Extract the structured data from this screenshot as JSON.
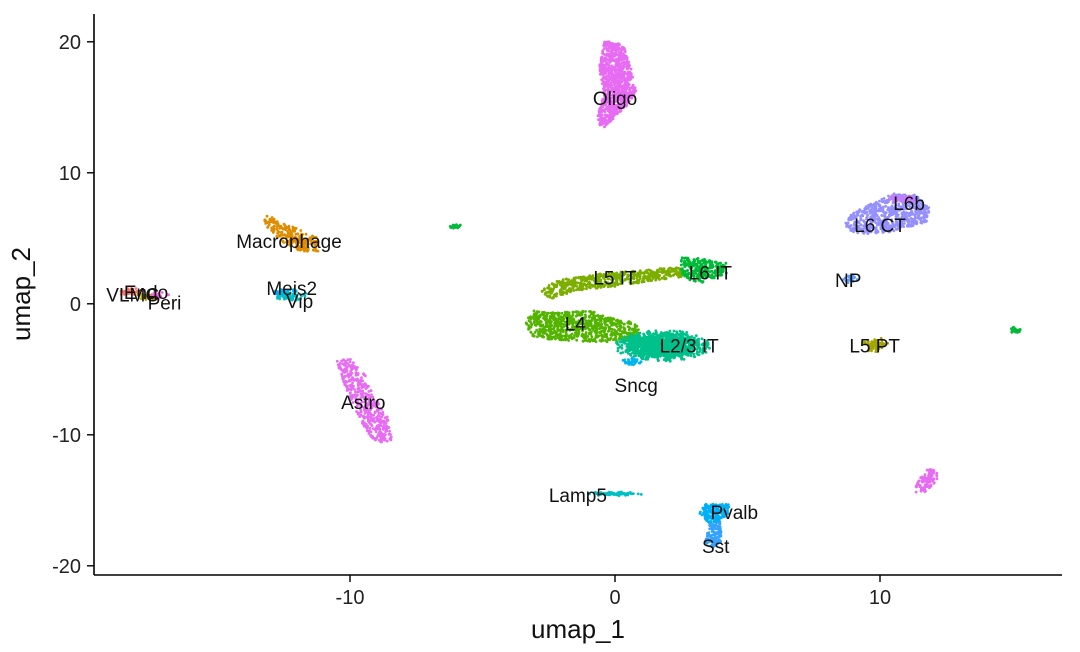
{
  "chart_data": {
    "type": "scatter",
    "title": "",
    "xlabel": "umap_1",
    "ylabel": "umap_2",
    "xlim": [
      -19.5,
      17.0
    ],
    "ylim": [
      -20.7,
      22.2
    ],
    "x_ticks": [
      -10,
      0,
      10
    ],
    "x_tick_labels": [
      "-10",
      "0",
      "10"
    ],
    "y_ticks": [
      -20,
      -10,
      0,
      10,
      20
    ],
    "y_tick_labels": [
      "-20",
      "-10",
      "0",
      "10",
      "20"
    ],
    "grid": false,
    "legend": "none",
    "point_size": 1.4,
    "clusters": [
      {
        "name": "Oligo",
        "color": "#E76BF3",
        "shape": "polygon",
        "n": 900,
        "polygon": [
          [
            -0.4,
            20.1
          ],
          [
            0.3,
            19.8
          ],
          [
            0.6,
            18.0
          ],
          [
            0.8,
            16.2
          ],
          [
            0.4,
            15.0
          ],
          [
            -0.5,
            13.3
          ],
          [
            -0.7,
            14.2
          ],
          [
            -0.4,
            16.0
          ],
          [
            -0.6,
            18.0
          ]
        ],
        "label": {
          "text": "Oligo",
          "x": 0.0,
          "y": 15.7
        }
      },
      {
        "name": "Macrophage",
        "color": "#DE8C00",
        "shape": "polygon",
        "n": 240,
        "polygon": [
          [
            -13.3,
            7.0
          ],
          [
            -12.6,
            6.2
          ],
          [
            -11.8,
            5.6
          ],
          [
            -11.2,
            5.0
          ],
          [
            -11.2,
            4.0
          ],
          [
            -12.0,
            4.0
          ],
          [
            -12.6,
            4.8
          ],
          [
            -13.2,
            6.0
          ]
        ],
        "label": {
          "text": "Macrophage",
          "x": -12.3,
          "y": 4.8
        }
      },
      {
        "name": "Endo",
        "color": "#F8766D",
        "shape": "ellipse",
        "n": 30,
        "center": [
          -18.3,
          0.9
        ],
        "radius": [
          0.5,
          0.35
        ],
        "rotate": 0,
        "label": {
          "text": "Endo",
          "x": -17.7,
          "y": 0.9
        }
      },
      {
        "name": "VLMC",
        "color": "#B79F00",
        "shape": "ellipse",
        "n": 25,
        "center": [
          -17.7,
          0.6
        ],
        "radius": [
          0.5,
          0.3
        ],
        "rotate": 0,
        "label": {
          "text": "VLMC",
          "x": -18.2,
          "y": 0.7
        }
      },
      {
        "name": "Peri",
        "color": "#F564E3",
        "shape": "ellipse",
        "n": 25,
        "center": [
          -17.2,
          0.6
        ],
        "radius": [
          0.4,
          0.3
        ],
        "rotate": 0,
        "label": {
          "text": "Peri",
          "x": -17.0,
          "y": 0.1
        }
      },
      {
        "name": "Meis2",
        "color": "#00A9FF",
        "shape": "ellipse",
        "n": 30,
        "center": [
          -12.5,
          0.9
        ],
        "radius": [
          0.5,
          0.4
        ],
        "rotate": 0,
        "label": {
          "text": "Meis2",
          "x": -12.2,
          "y": 1.2
        }
      },
      {
        "name": "Vip",
        "color": "#00BFC4",
        "shape": "ellipse",
        "n": 60,
        "center": [
          -12.2,
          0.6
        ],
        "radius": [
          0.6,
          0.45
        ],
        "rotate": 0,
        "label": {
          "text": "Vip",
          "x": -11.9,
          "y": 0.2
        }
      },
      {
        "name": "Astro",
        "color": "#E76BF3",
        "shape": "polygon",
        "n": 450,
        "polygon": [
          [
            -10.5,
            -4.2
          ],
          [
            -10.0,
            -4.2
          ],
          [
            -9.4,
            -5.5
          ],
          [
            -9.1,
            -7.0
          ],
          [
            -8.6,
            -8.5
          ],
          [
            -8.4,
            -10.5
          ],
          [
            -9.0,
            -10.6
          ],
          [
            -9.5,
            -9.5
          ],
          [
            -9.8,
            -8.0
          ],
          [
            -10.3,
            -6.0
          ]
        ],
        "label": {
          "text": "Astro",
          "x": -9.5,
          "y": -7.5
        }
      },
      {
        "name": "stray-green",
        "color": "#00BA38",
        "shape": "ellipse",
        "n": 18,
        "center": [
          -6.0,
          5.9
        ],
        "radius": [
          0.3,
          0.15
        ],
        "rotate": 0,
        "label": null
      },
      {
        "name": "L5 IT",
        "color": "#7CAE00",
        "shape": "polygon",
        "n": 550,
        "polygon": [
          [
            -2.2,
            1.8
          ],
          [
            -0.5,
            2.3
          ],
          [
            1.0,
            2.6
          ],
          [
            2.5,
            2.8
          ],
          [
            2.8,
            2.1
          ],
          [
            1.5,
            1.8
          ],
          [
            0.0,
            1.3
          ],
          [
            -1.5,
            1.0
          ],
          [
            -2.5,
            0.3
          ],
          [
            -2.8,
            1.0
          ]
        ],
        "label": {
          "text": "L5 IT",
          "x": 0.0,
          "y": 2.0
        }
      },
      {
        "name": "L6 IT",
        "color": "#00BA38",
        "shape": "polygon",
        "n": 250,
        "polygon": [
          [
            2.5,
            3.6
          ],
          [
            3.5,
            3.4
          ],
          [
            4.2,
            3.1
          ],
          [
            4.2,
            2.3
          ],
          [
            3.4,
            1.6
          ],
          [
            2.6,
            1.8
          ],
          [
            2.5,
            2.6
          ]
        ],
        "label": {
          "text": "L6 IT",
          "x": 3.6,
          "y": 2.4
        }
      },
      {
        "name": "L4",
        "color": "#53B400",
        "shape": "polygon",
        "n": 750,
        "polygon": [
          [
            -3.1,
            -0.5
          ],
          [
            -2.2,
            -0.7
          ],
          [
            -1.0,
            -0.5
          ],
          [
            0.0,
            -1.0
          ],
          [
            0.8,
            -1.5
          ],
          [
            1.0,
            -2.6
          ],
          [
            0.2,
            -2.9
          ],
          [
            -1.0,
            -2.9
          ],
          [
            -2.2,
            -2.8
          ],
          [
            -3.1,
            -2.5
          ],
          [
            -3.4,
            -1.5
          ]
        ],
        "label": {
          "text": "L4",
          "x": -1.5,
          "y": -1.5
        }
      },
      {
        "name": "L2/3 IT",
        "color": "#00C08B",
        "shape": "ellipse",
        "n": 1300,
        "center": [
          1.8,
          -3.2
        ],
        "radius": [
          1.8,
          1.2
        ],
        "rotate": 0,
        "label": {
          "text": "L2/3 IT",
          "x": 2.8,
          "y": -3.2
        }
      },
      {
        "name": "Sncg",
        "color": "#00B4F0",
        "shape": "ellipse",
        "n": 30,
        "center": [
          0.6,
          -4.4
        ],
        "radius": [
          0.5,
          0.3
        ],
        "rotate": 0,
        "label": {
          "text": "Sncg",
          "x": 0.8,
          "y": -6.2
        }
      },
      {
        "name": "L6 CT",
        "color": "#9590FF",
        "shape": "polygon",
        "n": 650,
        "polygon": [
          [
            9.5,
            7.5
          ],
          [
            10.5,
            8.4
          ],
          [
            11.4,
            8.3
          ],
          [
            11.9,
            7.2
          ],
          [
            11.8,
            6.3
          ],
          [
            10.5,
            5.5
          ],
          [
            9.2,
            5.3
          ],
          [
            8.6,
            5.9
          ],
          [
            8.9,
            6.8
          ]
        ],
        "label": {
          "text": "L6 CT",
          "x": 10.0,
          "y": 6.0
        }
      },
      {
        "name": "L6b",
        "color": "#C77CFF",
        "shape": "ellipse",
        "n": 60,
        "center": [
          10.9,
          8.0
        ],
        "radius": [
          0.6,
          0.4
        ],
        "rotate": 0,
        "label": {
          "text": "L6b",
          "x": 11.1,
          "y": 7.7
        }
      },
      {
        "name": "NP",
        "color": "#619CFF",
        "shape": "ellipse",
        "n": 25,
        "center": [
          8.9,
          1.9
        ],
        "radius": [
          0.3,
          0.4
        ],
        "rotate": 0,
        "label": {
          "text": "NP",
          "x": 8.8,
          "y": 1.8
        }
      },
      {
        "name": "L5 PT",
        "color": "#A3A500",
        "shape": "ellipse",
        "n": 70,
        "center": [
          9.8,
          -3.1
        ],
        "radius": [
          0.5,
          0.6
        ],
        "rotate": 0,
        "label": {
          "text": "L5 PT",
          "x": 9.8,
          "y": -3.2
        }
      },
      {
        "name": "stray-green-2",
        "color": "#00BA38",
        "shape": "ellipse",
        "n": 25,
        "center": [
          15.1,
          -2.0
        ],
        "radius": [
          0.3,
          0.25
        ],
        "rotate": 0,
        "label": null
      },
      {
        "name": "stray-magenta",
        "color": "#E76BF3",
        "shape": "polygon",
        "n": 90,
        "polygon": [
          [
            11.8,
            -12.6
          ],
          [
            12.3,
            -12.7
          ],
          [
            12.1,
            -13.6
          ],
          [
            11.7,
            -14.4
          ],
          [
            11.3,
            -14.4
          ],
          [
            11.4,
            -13.6
          ]
        ],
        "label": null
      },
      {
        "name": "Lamp5",
        "color": "#00BFC4",
        "shape": "ellipse",
        "n": 90,
        "center": [
          0.0,
          -14.5
        ],
        "radius": [
          1.1,
          0.15
        ],
        "rotate": 0,
        "label": {
          "text": "Lamp5",
          "x": -1.4,
          "y": -14.6
        }
      },
      {
        "name": "Pvalb",
        "color": "#00B0F6",
        "shape": "polygon",
        "n": 180,
        "polygon": [
          [
            3.3,
            -15.3
          ],
          [
            4.3,
            -15.3
          ],
          [
            4.3,
            -16.0
          ],
          [
            3.9,
            -16.7
          ],
          [
            3.5,
            -16.7
          ],
          [
            3.2,
            -16.0
          ]
        ],
        "label": {
          "text": "Pvalb",
          "x": 4.5,
          "y": -15.9
        }
      },
      {
        "name": "Sst",
        "color": "#35A2FF",
        "shape": "polygon",
        "n": 120,
        "polygon": [
          [
            3.6,
            -16.6
          ],
          [
            4.0,
            -16.6
          ],
          [
            4.0,
            -18.2
          ],
          [
            3.7,
            -18.6
          ],
          [
            3.4,
            -18.2
          ]
        ],
        "label": {
          "text": "Sst",
          "x": 3.8,
          "y": -18.5
        }
      }
    ]
  }
}
